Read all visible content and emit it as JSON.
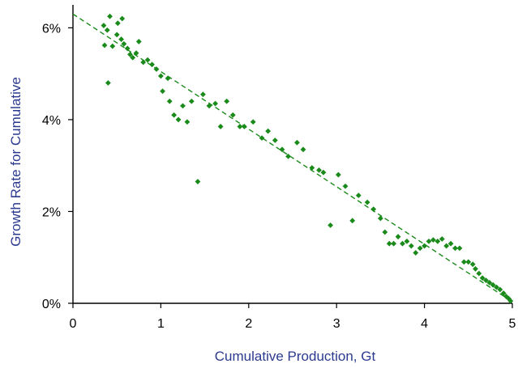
{
  "chart_data": {
    "type": "scatter",
    "title": "",
    "xlabel": "Cumulative Production, Gt",
    "ylabel": "Growth Rate for Cumulative",
    "xlim": [
      0,
      5
    ],
    "ylim": [
      0,
      6.5
    ],
    "x_ticks": [
      0,
      1,
      2,
      3,
      4,
      5
    ],
    "x_tick_labels": [
      "0",
      "1",
      "2",
      "3",
      "4",
      "5"
    ],
    "y_ticks": [
      0,
      2,
      4,
      6
    ],
    "y_tick_labels": [
      "0%",
      "2%",
      "4%",
      "6%"
    ],
    "grid": false,
    "legend": "none",
    "colors": {
      "points": "#1a8a1a",
      "trend": "#1a8a1a",
      "axis_title": "#2b3a8f",
      "axis": "#000000"
    },
    "trend_line": {
      "style": "dashed",
      "x": [
        0,
        4.97
      ],
      "y": [
        6.3,
        0.07
      ]
    },
    "series": [
      {
        "values": [
          [
            0.35,
            6.05
          ],
          [
            0.42,
            6.25
          ],
          [
            0.51,
            6.1
          ],
          [
            0.56,
            6.2
          ],
          [
            0.39,
            5.95
          ],
          [
            0.36,
            5.62
          ],
          [
            0.45,
            5.6
          ],
          [
            0.5,
            5.85
          ],
          [
            0.55,
            5.75
          ],
          [
            0.58,
            5.65
          ],
          [
            0.62,
            5.55
          ],
          [
            0.65,
            5.42
          ],
          [
            0.68,
            5.35
          ],
          [
            0.72,
            5.45
          ],
          [
            0.75,
            5.7
          ],
          [
            0.8,
            5.25
          ],
          [
            0.85,
            5.3
          ],
          [
            0.9,
            5.2
          ],
          [
            0.95,
            5.1
          ],
          [
            1.0,
            4.95
          ],
          [
            0.4,
            4.8
          ],
          [
            1.02,
            4.62
          ],
          [
            1.08,
            4.9
          ],
          [
            1.1,
            4.4
          ],
          [
            1.15,
            4.1
          ],
          [
            1.2,
            4.0
          ],
          [
            1.25,
            4.3
          ],
          [
            1.3,
            3.95
          ],
          [
            1.35,
            4.4
          ],
          [
            1.42,
            2.65
          ],
          [
            1.48,
            4.55
          ],
          [
            1.55,
            4.3
          ],
          [
            1.62,
            4.35
          ],
          [
            1.68,
            3.85
          ],
          [
            1.75,
            4.4
          ],
          [
            1.82,
            4.1
          ],
          [
            1.9,
            3.85
          ],
          [
            1.95,
            3.85
          ],
          [
            2.05,
            3.95
          ],
          [
            2.15,
            3.6
          ],
          [
            2.22,
            3.75
          ],
          [
            2.3,
            3.55
          ],
          [
            2.38,
            3.35
          ],
          [
            2.45,
            3.2
          ],
          [
            2.55,
            3.5
          ],
          [
            2.62,
            3.35
          ],
          [
            2.72,
            2.95
          ],
          [
            2.8,
            2.9
          ],
          [
            2.85,
            2.85
          ],
          [
            2.93,
            1.7
          ],
          [
            3.02,
            2.8
          ],
          [
            3.1,
            2.55
          ],
          [
            3.18,
            1.8
          ],
          [
            3.25,
            2.35
          ],
          [
            3.35,
            2.2
          ],
          [
            3.42,
            2.05
          ],
          [
            3.5,
            1.85
          ],
          [
            3.55,
            1.55
          ],
          [
            3.6,
            1.3
          ],
          [
            3.65,
            1.3
          ],
          [
            3.7,
            1.45
          ],
          [
            3.75,
            1.3
          ],
          [
            3.8,
            1.35
          ],
          [
            3.85,
            1.25
          ],
          [
            3.9,
            1.1
          ],
          [
            3.95,
            1.2
          ],
          [
            4.0,
            1.25
          ],
          [
            4.05,
            1.35
          ],
          [
            4.1,
            1.38
          ],
          [
            4.15,
            1.35
          ],
          [
            4.2,
            1.4
          ],
          [
            4.25,
            1.25
          ],
          [
            4.3,
            1.3
          ],
          [
            4.35,
            1.2
          ],
          [
            4.4,
            1.2
          ],
          [
            4.45,
            0.9
          ],
          [
            4.5,
            0.9
          ],
          [
            4.55,
            0.85
          ],
          [
            4.58,
            0.75
          ],
          [
            4.62,
            0.65
          ],
          [
            4.66,
            0.55
          ],
          [
            4.7,
            0.5
          ],
          [
            4.74,
            0.45
          ],
          [
            4.78,
            0.4
          ],
          [
            4.82,
            0.35
          ],
          [
            4.86,
            0.3
          ],
          [
            4.9,
            0.22
          ],
          [
            4.93,
            0.15
          ],
          [
            4.96,
            0.1
          ],
          [
            4.98,
            0.05
          ]
        ]
      }
    ]
  }
}
